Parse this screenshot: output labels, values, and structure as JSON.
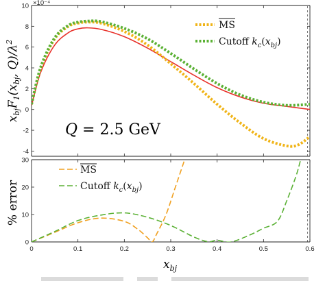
{
  "chart_data": [
    {
      "type": "line",
      "ylabel": "x_{bj}F_1(x_{bj},Q)/λ^2",
      "yexponent": "×10⁻⁴",
      "xlim": [
        0,
        0.6
      ],
      "ylim": [
        -4.5,
        10
      ],
      "xticks": [
        0,
        0.1,
        0.2,
        0.3,
        0.4,
        0.5,
        0.6
      ],
      "yticks": [
        -4,
        -2,
        0,
        2,
        4,
        6,
        8,
        10
      ],
      "ytick_labels": [
        "-4",
        "-2",
        "0",
        "2",
        "4",
        "6",
        "8",
        "10"
      ],
      "annotation": "Q = 2.5 GeV",
      "legend_position": "top-right",
      "series": [
        {
          "name": "",
          "color": "#e8312a",
          "style": "solid",
          "x": [
            0.0,
            0.02,
            0.05,
            0.08,
            0.1,
            0.12,
            0.15,
            0.2,
            0.25,
            0.3,
            0.35,
            0.4,
            0.45,
            0.5,
            0.55,
            0.6
          ],
          "y": [
            0.4,
            3.6,
            6.2,
            7.4,
            7.75,
            7.85,
            7.7,
            7.0,
            5.9,
            4.6,
            3.3,
            2.1,
            1.2,
            0.6,
            0.3,
            0.0
          ]
        },
        {
          "name": "MS",
          "overline": true,
          "color": "#f0b418",
          "style": "dotted",
          "x": [
            0.0,
            0.02,
            0.05,
            0.08,
            0.1,
            0.12,
            0.15,
            0.2,
            0.25,
            0.3,
            0.35,
            0.4,
            0.45,
            0.5,
            0.55,
            0.575,
            0.6
          ],
          "y": [
            0.5,
            4.0,
            6.8,
            8.0,
            8.3,
            8.4,
            8.3,
            7.5,
            6.2,
            4.4,
            2.5,
            0.5,
            -1.3,
            -2.8,
            -3.5,
            -3.4,
            -2.6
          ]
        },
        {
          "name": "Cutoff k_c(x_bj)",
          "color": "#5bb135",
          "style": "dotted",
          "x": [
            0.0,
            0.02,
            0.05,
            0.08,
            0.1,
            0.12,
            0.15,
            0.2,
            0.25,
            0.3,
            0.35,
            0.4,
            0.45,
            0.5,
            0.55,
            0.6
          ],
          "y": [
            0.5,
            4.1,
            6.9,
            8.1,
            8.4,
            8.5,
            8.45,
            7.8,
            6.8,
            5.4,
            3.9,
            2.5,
            1.4,
            0.7,
            0.4,
            0.5
          ]
        }
      ]
    },
    {
      "type": "line",
      "xlabel": "x_bj",
      "ylabel": "% error",
      "xlim": [
        0,
        0.6
      ],
      "ylim": [
        0,
        30
      ],
      "xticks": [
        0,
        0.1,
        0.2,
        0.3,
        0.4,
        0.5,
        0.6
      ],
      "xtick_labels": [
        "0",
        "0.1",
        "0.2",
        "0.3",
        "0.4",
        "0.5",
        "0.6"
      ],
      "yticks": [
        0,
        10,
        20,
        30
      ],
      "ytick_labels": [
        "0",
        "10",
        "20",
        "30"
      ],
      "legend_position": "top-left",
      "series": [
        {
          "name": "MS",
          "overline": true,
          "color": "#f0a020",
          "style": "dashed",
          "x": [
            0.0,
            0.05,
            0.1,
            0.15,
            0.2,
            0.23,
            0.25,
            0.26,
            0.27,
            0.29,
            0.31,
            0.33
          ],
          "y": [
            0.0,
            3.5,
            7.0,
            8.7,
            7.5,
            4.5,
            1.5,
            0.0,
            3.0,
            10.0,
            20.0,
            30.0
          ]
        },
        {
          "name": "Cutoff k_c(x_bj)",
          "color": "#5bb135",
          "style": "dashed",
          "x": [
            0.0,
            0.05,
            0.1,
            0.15,
            0.2,
            0.25,
            0.3,
            0.35,
            0.38,
            0.4,
            0.43,
            0.47,
            0.5,
            0.53,
            0.55,
            0.57,
            0.58
          ],
          "y": [
            0.0,
            3.8,
            7.8,
            9.8,
            10.6,
            9.0,
            6.0,
            1.8,
            0.1,
            0.6,
            0.0,
            2.5,
            5.0,
            7.5,
            15.0,
            24.0,
            30.0
          ]
        }
      ]
    }
  ]
}
